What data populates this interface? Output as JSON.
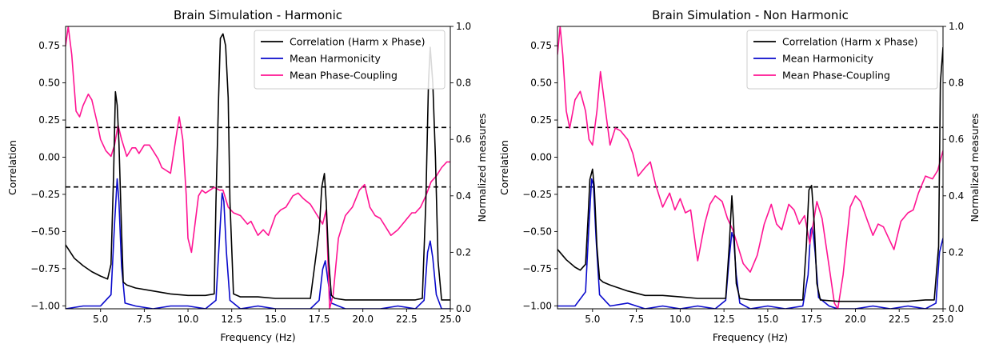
{
  "chart_data": [
    {
      "type": "line",
      "title": "Brain Simulation - Harmonic",
      "xlabel": "Frequency (Hz)",
      "ylabel": "Correlation",
      "ylabel_right": "Normalized measures",
      "xlim": [
        3.0,
        25.0
      ],
      "ylim": [
        -1.02,
        0.88
      ],
      "ylim_right": [
        0.0,
        1.0
      ],
      "xticks": [
        5.0,
        7.5,
        10.0,
        12.5,
        15.0,
        17.5,
        20.0,
        22.5,
        25.0
      ],
      "xtick_labels": [
        "5.0",
        "7.5",
        "10.0",
        "12.5",
        "15.0",
        "17.5",
        "20.0",
        "22.5",
        "25.0"
      ],
      "yticks": [
        -1.0,
        -0.75,
        -0.5,
        -0.25,
        0.0,
        0.25,
        0.5,
        0.75
      ],
      "ytick_labels": [
        "−1.00",
        "−0.75",
        "−0.50",
        "−0.25",
        "0.00",
        "0.25",
        "0.50",
        "0.75"
      ],
      "yticks_right": [
        0.0,
        0.2,
        0.4,
        0.6,
        0.8,
        1.0
      ],
      "ytick_labels_right": [
        "0.0",
        "0.2",
        "0.4",
        "0.6",
        "0.8",
        "1.0"
      ],
      "hlines": [
        0.2,
        -0.2
      ],
      "legend_location": "top-right",
      "series": [
        {
          "name": "Correlation (Harm x Phase)",
          "axis": "left",
          "color": "#000000",
          "x": [
            3.0,
            3.5,
            4.0,
            4.5,
            5.0,
            5.4,
            5.6,
            5.75,
            5.85,
            5.95,
            6.05,
            6.2,
            6.3,
            6.5,
            7.0,
            8.0,
            9.0,
            10.0,
            11.0,
            11.5,
            11.6,
            11.75,
            11.85,
            12.0,
            12.15,
            12.3,
            12.4,
            12.6,
            13.0,
            14.0,
            15.0,
            16.0,
            17.0,
            17.5,
            17.65,
            17.8,
            17.9,
            18.05,
            18.2,
            18.4,
            19.0,
            20.0,
            21.0,
            22.0,
            23.0,
            23.4,
            23.6,
            23.75,
            23.85,
            24.0,
            24.15,
            24.3,
            24.5,
            25.0
          ],
          "y": [
            -0.59,
            -0.68,
            -0.73,
            -0.77,
            -0.8,
            -0.82,
            -0.72,
            -0.1,
            0.44,
            0.35,
            0.1,
            -0.5,
            -0.84,
            -0.86,
            -0.88,
            -0.9,
            -0.92,
            -0.93,
            -0.93,
            -0.92,
            -0.3,
            0.4,
            0.8,
            0.83,
            0.75,
            0.4,
            -0.3,
            -0.92,
            -0.94,
            -0.94,
            -0.95,
            -0.95,
            -0.95,
            -0.5,
            -0.2,
            -0.11,
            -0.3,
            -0.7,
            -0.93,
            -0.95,
            -0.96,
            -0.96,
            -0.96,
            -0.96,
            -0.96,
            -0.95,
            -0.3,
            0.5,
            0.74,
            0.5,
            0.0,
            -0.7,
            -0.96,
            -0.96
          ]
        },
        {
          "name": "Mean Harmonicity",
          "axis": "right",
          "color": "#0a0acc",
          "x": [
            3.0,
            4.0,
            5.0,
            5.6,
            5.8,
            5.95,
            6.05,
            6.2,
            6.4,
            7.0,
            8.0,
            9.0,
            10.0,
            11.0,
            11.6,
            11.8,
            11.95,
            12.05,
            12.2,
            12.4,
            13.0,
            14.0,
            15.0,
            16.0,
            17.0,
            17.5,
            17.7,
            17.85,
            18.0,
            18.2,
            19.0,
            20.0,
            21.0,
            22.0,
            23.0,
            23.5,
            23.7,
            23.85,
            24.0,
            24.2,
            24.5,
            25.0
          ],
          "x_note": "",
          "y": [
            0.0,
            0.01,
            0.01,
            0.05,
            0.3,
            0.46,
            0.38,
            0.15,
            0.02,
            0.01,
            0.0,
            0.01,
            0.01,
            0.0,
            0.03,
            0.25,
            0.41,
            0.38,
            0.2,
            0.03,
            0.0,
            0.01,
            0.0,
            0.0,
            0.0,
            0.03,
            0.14,
            0.17,
            0.1,
            0.02,
            0.0,
            0.0,
            0.0,
            0.01,
            0.0,
            0.03,
            0.2,
            0.24,
            0.18,
            0.05,
            0.0,
            0.0
          ]
        },
        {
          "name": "Mean Phase-Coupling",
          "axis": "right",
          "color": "#ff1493",
          "x": [
            3.0,
            3.15,
            3.35,
            3.6,
            3.8,
            4.0,
            4.3,
            4.5,
            4.8,
            5.0,
            5.3,
            5.6,
            5.8,
            6.0,
            6.2,
            6.5,
            6.8,
            7.0,
            7.2,
            7.5,
            7.8,
            8.0,
            8.3,
            8.5,
            9.0,
            9.3,
            9.5,
            9.7,
            9.9,
            10.0,
            10.2,
            10.4,
            10.6,
            10.8,
            11.0,
            11.5,
            11.8,
            12.0,
            12.3,
            12.6,
            13.0,
            13.4,
            13.6,
            14.0,
            14.3,
            14.6,
            15.0,
            15.3,
            15.6,
            16.0,
            16.3,
            16.6,
            17.0,
            17.4,
            17.7,
            17.9,
            18.1,
            18.3,
            18.6,
            19.0,
            19.4,
            19.8,
            20.1,
            20.4,
            20.7,
            21.0,
            21.3,
            21.6,
            22.0,
            22.4,
            22.8,
            23.0,
            23.3,
            23.6,
            23.9,
            24.2,
            24.5,
            24.8,
            25.0
          ],
          "y": [
            0.93,
            1.0,
            0.9,
            0.7,
            0.68,
            0.72,
            0.76,
            0.74,
            0.66,
            0.6,
            0.56,
            0.54,
            0.58,
            0.65,
            0.6,
            0.54,
            0.57,
            0.57,
            0.55,
            0.58,
            0.58,
            0.56,
            0.53,
            0.5,
            0.48,
            0.6,
            0.68,
            0.6,
            0.4,
            0.25,
            0.2,
            0.3,
            0.4,
            0.42,
            0.41,
            0.43,
            0.42,
            0.42,
            0.36,
            0.34,
            0.33,
            0.3,
            0.31,
            0.26,
            0.28,
            0.26,
            0.33,
            0.35,
            0.36,
            0.4,
            0.41,
            0.39,
            0.37,
            0.33,
            0.3,
            0.35,
            0.0,
            0.05,
            0.25,
            0.33,
            0.36,
            0.42,
            0.44,
            0.36,
            0.33,
            0.32,
            0.29,
            0.26,
            0.28,
            0.31,
            0.34,
            0.34,
            0.36,
            0.4,
            0.45,
            0.47,
            0.5,
            0.52,
            0.52
          ]
        }
      ]
    },
    {
      "type": "line",
      "title": "Brain Simulation - Non Harmonic",
      "xlabel": "Frequency (Hz)",
      "ylabel": "Correlation",
      "ylabel_right": "Normalized measures",
      "xlim": [
        3.0,
        25.0
      ],
      "ylim": [
        -1.02,
        0.88
      ],
      "ylim_right": [
        0.0,
        1.0
      ],
      "xticks": [
        5.0,
        7.5,
        10.0,
        12.5,
        15.0,
        17.5,
        20.0,
        22.5,
        25.0
      ],
      "xtick_labels": [
        "5.0",
        "7.5",
        "10.0",
        "12.5",
        "15.0",
        "17.5",
        "20.0",
        "22.5",
        "25.0"
      ],
      "yticks": [
        -1.0,
        -0.75,
        -0.5,
        -0.25,
        0.0,
        0.25,
        0.5,
        0.75
      ],
      "ytick_labels": [
        "−1.00",
        "−0.75",
        "−0.50",
        "−0.25",
        "0.00",
        "0.25",
        "0.50",
        "0.75"
      ],
      "yticks_right": [
        0.0,
        0.2,
        0.4,
        0.6,
        0.8,
        1.0
      ],
      "ytick_labels_right": [
        "0.0",
        "0.2",
        "0.4",
        "0.6",
        "0.8",
        "1.0"
      ],
      "hlines": [
        0.2,
        -0.2
      ],
      "legend_location": "top-right",
      "series": [
        {
          "name": "Correlation (Harm x Phase)",
          "axis": "left",
          "color": "#000000",
          "x": [
            3.0,
            3.5,
            4.0,
            4.3,
            4.6,
            4.75,
            4.85,
            5.0,
            5.1,
            5.25,
            5.4,
            5.6,
            6.0,
            7.0,
            8.0,
            9.0,
            10.0,
            11.0,
            12.0,
            12.6,
            12.8,
            12.95,
            13.05,
            13.2,
            13.4,
            14.0,
            15.0,
            16.0,
            17.0,
            17.2,
            17.35,
            17.5,
            17.65,
            17.8,
            18.0,
            19.0,
            20.0,
            21.0,
            22.0,
            23.0,
            24.0,
            24.5,
            24.75,
            24.85,
            25.0
          ],
          "y": [
            -0.62,
            -0.69,
            -0.74,
            -0.76,
            -0.72,
            -0.4,
            -0.15,
            -0.08,
            -0.2,
            -0.6,
            -0.82,
            -0.84,
            -0.86,
            -0.9,
            -0.93,
            -0.93,
            -0.94,
            -0.95,
            -0.95,
            -0.95,
            -0.6,
            -0.26,
            -0.45,
            -0.85,
            -0.95,
            -0.96,
            -0.96,
            -0.96,
            -0.96,
            -0.6,
            -0.22,
            -0.19,
            -0.45,
            -0.85,
            -0.96,
            -0.97,
            -0.97,
            -0.97,
            -0.97,
            -0.97,
            -0.96,
            -0.96,
            -0.6,
            0.5,
            0.74
          ]
        },
        {
          "name": "Mean Harmonicity",
          "axis": "right",
          "color": "#0a0acc",
          "x": [
            3.0,
            4.0,
            4.6,
            4.8,
            4.95,
            5.05,
            5.2,
            5.4,
            6.0,
            7.0,
            8.0,
            9.0,
            10.0,
            11.0,
            12.0,
            12.6,
            12.8,
            12.95,
            13.05,
            13.2,
            13.4,
            14.0,
            15.0,
            16.0,
            17.0,
            17.3,
            17.45,
            17.55,
            17.7,
            17.9,
            18.5,
            19.0,
            20.0,
            21.0,
            22.0,
            23.0,
            24.0,
            24.6,
            24.8,
            25.0
          ],
          "y": [
            0.01,
            0.01,
            0.06,
            0.3,
            0.46,
            0.44,
            0.25,
            0.05,
            0.01,
            0.02,
            0.0,
            0.01,
            0.0,
            0.01,
            0.0,
            0.03,
            0.18,
            0.27,
            0.25,
            0.12,
            0.02,
            0.0,
            0.01,
            0.0,
            0.01,
            0.12,
            0.28,
            0.29,
            0.2,
            0.04,
            0.01,
            0.0,
            0.0,
            0.01,
            0.0,
            0.01,
            0.0,
            0.02,
            0.2,
            0.25
          ]
        },
        {
          "name": "Mean Phase-Coupling",
          "axis": "right",
          "color": "#ff1493",
          "x": [
            3.0,
            3.15,
            3.3,
            3.5,
            3.7,
            4.0,
            4.3,
            4.6,
            4.8,
            5.0,
            5.25,
            5.45,
            5.7,
            6.0,
            6.3,
            6.6,
            7.0,
            7.3,
            7.6,
            8.0,
            8.3,
            8.6,
            9.0,
            9.4,
            9.7,
            10.0,
            10.3,
            10.6,
            11.0,
            11.4,
            11.7,
            12.0,
            12.4,
            12.7,
            13.0,
            13.3,
            13.6,
            14.0,
            14.4,
            14.8,
            15.2,
            15.5,
            15.8,
            16.2,
            16.5,
            16.8,
            17.1,
            17.4,
            17.8,
            18.1,
            18.5,
            18.8,
            19.0,
            19.3,
            19.7,
            20.0,
            20.3,
            20.7,
            21.0,
            21.3,
            21.6,
            21.9,
            22.2,
            22.6,
            23.0,
            23.3,
            23.6,
            24.0,
            24.4,
            24.7,
            25.0
          ],
          "y": [
            0.9,
            1.0,
            0.9,
            0.7,
            0.64,
            0.74,
            0.77,
            0.7,
            0.6,
            0.58,
            0.7,
            0.84,
            0.72,
            0.58,
            0.64,
            0.63,
            0.6,
            0.55,
            0.47,
            0.5,
            0.52,
            0.44,
            0.36,
            0.41,
            0.35,
            0.39,
            0.34,
            0.35,
            0.17,
            0.3,
            0.37,
            0.4,
            0.38,
            0.32,
            0.28,
            0.22,
            0.16,
            0.13,
            0.19,
            0.3,
            0.37,
            0.3,
            0.28,
            0.37,
            0.35,
            0.3,
            0.33,
            0.23,
            0.38,
            0.32,
            0.15,
            0.02,
            0.0,
            0.12,
            0.36,
            0.4,
            0.38,
            0.31,
            0.26,
            0.3,
            0.29,
            0.25,
            0.21,
            0.31,
            0.34,
            0.35,
            0.41,
            0.47,
            0.46,
            0.49,
            0.56
          ]
        }
      ]
    }
  ]
}
